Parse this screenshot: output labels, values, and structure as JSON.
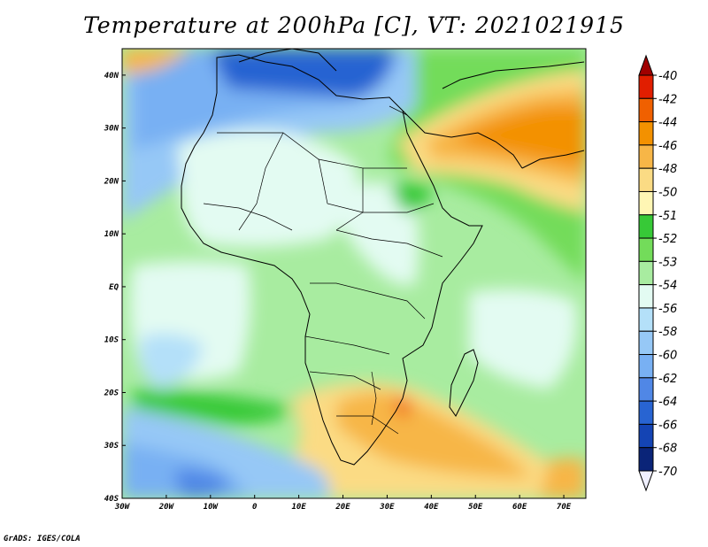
{
  "title": "Temperature at 200hPa [C], VT: 2021021915",
  "footer": "GrADS: IGES/COLA",
  "map": {
    "lon_ticks": [
      "30W",
      "20W",
      "10W",
      "0",
      "10E",
      "20E",
      "30E",
      "40E",
      "50E",
      "60E",
      "70E"
    ],
    "lat_ticks": [
      "40N",
      "30N",
      "20N",
      "10N",
      "EQ",
      "10S",
      "20S",
      "30S",
      "40S"
    ],
    "lon_range": [
      -30,
      75
    ],
    "lat_range": [
      -40,
      45
    ]
  },
  "colorbar": {
    "labels": [
      "-40",
      "-42",
      "-44",
      "-46",
      "-48",
      "-50",
      "-51",
      "-52",
      "-53",
      "-54",
      "-56",
      "-58",
      "-60",
      "-62",
      "-64",
      "-66",
      "-68",
      "-70"
    ],
    "colors": [
      "#a00000",
      "#e11e00",
      "#f06000",
      "#f39100",
      "#f7b647",
      "#fbdb84",
      "#fff6b4",
      "#37c937",
      "#73dc5a",
      "#a8eca0",
      "#e3fbf2",
      "#b4e0f9",
      "#96c8f6",
      "#78b0f3",
      "#5087e6",
      "#2864d2",
      "#1444b4",
      "#0a2478",
      "#f0f0ff"
    ]
  }
}
